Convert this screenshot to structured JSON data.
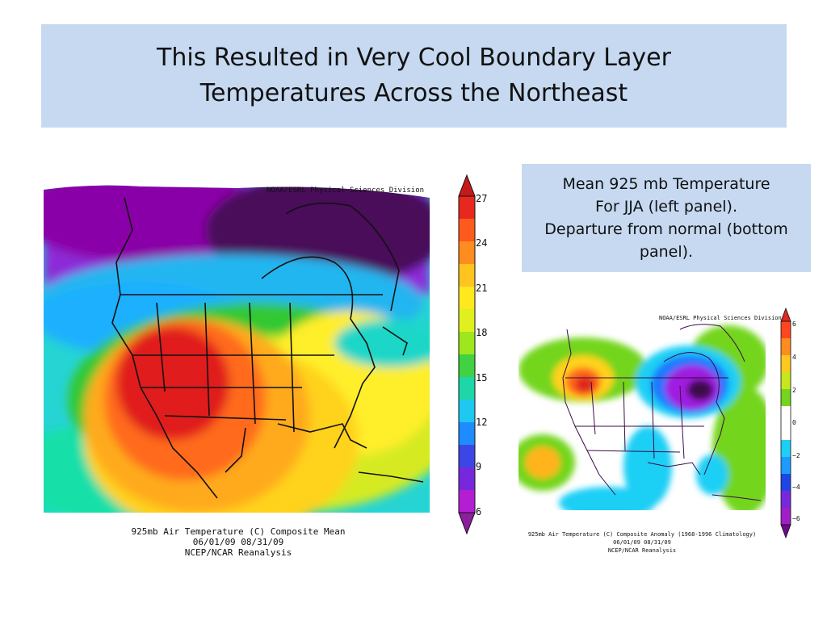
{
  "slide": {
    "title": "This Resulted in Very Cool Boundary Layer\nTemperatures Across the Northeast",
    "caption": "Mean 925 mb Temperature\nFor JJA (left panel).\nDeparture from normal (bottom\npanel)."
  },
  "left_map": {
    "credit": "NOAA/ESRL Physical Sciences Division",
    "footer": "925mb Air Temperature (C) Composite Mean\n06/01/09 08/31/09\nNCEP/NCAR Reanalysis",
    "colorbar_labels": [
      "27",
      "24",
      "21",
      "18",
      "15",
      "12",
      "9",
      "6"
    ]
  },
  "right_map": {
    "credit": "NOAA/ESRL Physical Sciences Division",
    "footer": "925mb Air Temperature (C) Composite Anomaly (1968-1996 Climatology)\n06/01/09 08/31/09\nNCEP/NCAR Reanalysis",
    "colorbar_labels": [
      "6",
      "4",
      "2",
      "0",
      "−2",
      "−4",
      "−6"
    ]
  }
}
